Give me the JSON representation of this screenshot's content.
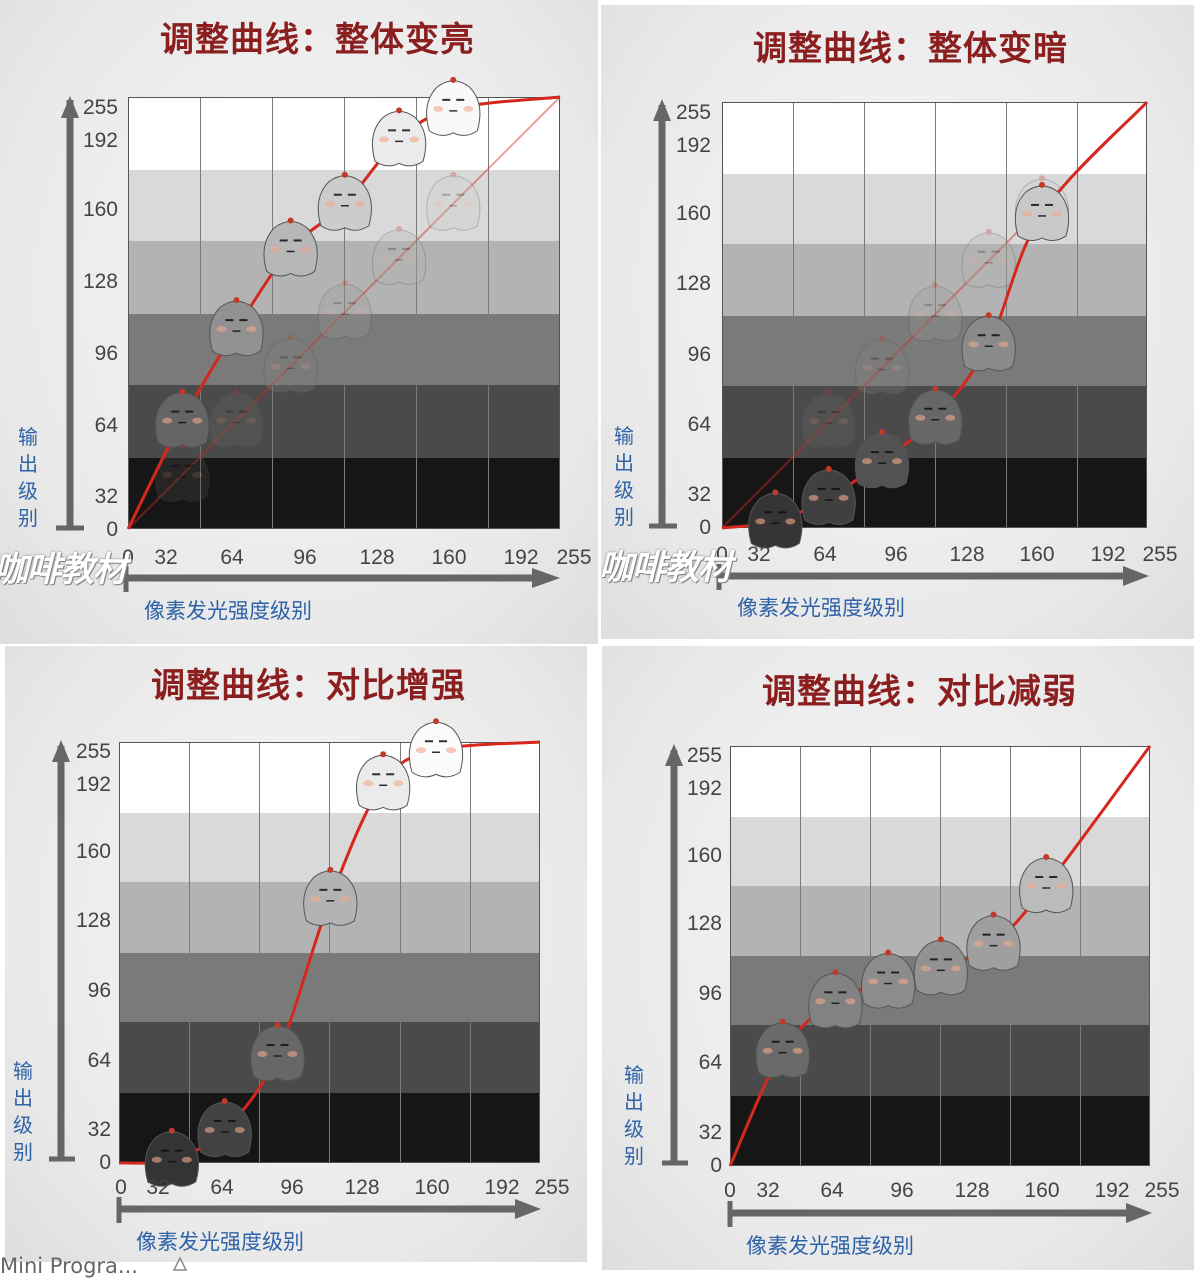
{
  "panels": [
    {
      "title": "调整曲线：整体变亮",
      "curve": "brighten",
      "curve_points": [
        [
          0,
          0
        ],
        [
          32,
          64
        ],
        [
          64,
          118
        ],
        [
          96,
          165
        ],
        [
          128,
          192
        ],
        [
          160,
          230
        ],
        [
          192,
          248
        ],
        [
          255,
          255
        ]
      ],
      "character_points": [
        [
          32,
          64
        ],
        [
          64,
          118
        ],
        [
          96,
          165
        ],
        [
          128,
          192
        ],
        [
          160,
          230
        ],
        [
          192,
          248
        ]
      ],
      "ghost_points": [
        [
          32,
          32
        ],
        [
          64,
          64
        ],
        [
          96,
          96
        ],
        [
          128,
          128
        ],
        [
          160,
          160
        ],
        [
          192,
          192
        ]
      ]
    },
    {
      "title": "调整曲线：整体变暗",
      "curve": "darken",
      "curve_points": [
        [
          0,
          0
        ],
        [
          32,
          4
        ],
        [
          64,
          18
        ],
        [
          96,
          40
        ],
        [
          128,
          66
        ],
        [
          160,
          110
        ],
        [
          192,
          188
        ],
        [
          255,
          255
        ]
      ],
      "character_points": [
        [
          32,
          4
        ],
        [
          64,
          18
        ],
        [
          96,
          40
        ],
        [
          128,
          66
        ],
        [
          160,
          110
        ],
        [
          192,
          188
        ]
      ],
      "ghost_points": [
        [
          64,
          64
        ],
        [
          96,
          96
        ],
        [
          128,
          128
        ],
        [
          160,
          160
        ],
        [
          192,
          192
        ]
      ]
    },
    {
      "title": "调整曲线：对比增强",
      "curve": "contrast-up",
      "curve_points": [
        [
          0,
          0
        ],
        [
          32,
          2
        ],
        [
          64,
          20
        ],
        [
          96,
          66
        ],
        [
          128,
          160
        ],
        [
          160,
          230
        ],
        [
          192,
          250
        ],
        [
          255,
          255
        ]
      ],
      "character_points": [
        [
          32,
          2
        ],
        [
          64,
          20
        ],
        [
          96,
          66
        ],
        [
          128,
          160
        ],
        [
          160,
          230
        ],
        [
          192,
          250
        ]
      ],
      "ghost_points": []
    },
    {
      "title": "调整曲线：对比减弱",
      "curve": "contrast-down",
      "curve_points": [
        [
          0,
          0
        ],
        [
          32,
          70
        ],
        [
          64,
          100
        ],
        [
          96,
          112
        ],
        [
          128,
          120
        ],
        [
          160,
          135
        ],
        [
          192,
          170
        ],
        [
          255,
          255
        ]
      ],
      "character_points": [
        [
          32,
          70
        ],
        [
          64,
          100
        ],
        [
          96,
          112
        ],
        [
          128,
          120
        ],
        [
          160,
          135
        ],
        [
          192,
          170
        ]
      ],
      "ghost_points": []
    }
  ],
  "y_ticks": [
    "255",
    "192",
    "160",
    "128",
    "96",
    "64",
    "32",
    "0"
  ],
  "x_ticks": [
    "0",
    "32",
    "64",
    "96",
    "128",
    "160",
    "192",
    "255"
  ],
  "y_axis_name": "输出级别",
  "x_axis_name": "像素发光强度级别",
  "watermark": "咖啡教材",
  "bands": [
    "#ffffff",
    "#d9d9d9",
    "#b3b3b3",
    "#7a7a7a",
    "#4a4a4a",
    "#161616"
  ],
  "colors": {
    "title": "#8b1f1f",
    "axis_label": "#2f63a8",
    "curve": "#d4281f",
    "axis": "#666666"
  },
  "side_fragments": {
    "bottom_left_text": "Mini Progra...",
    "icon": "share-icon"
  }
}
